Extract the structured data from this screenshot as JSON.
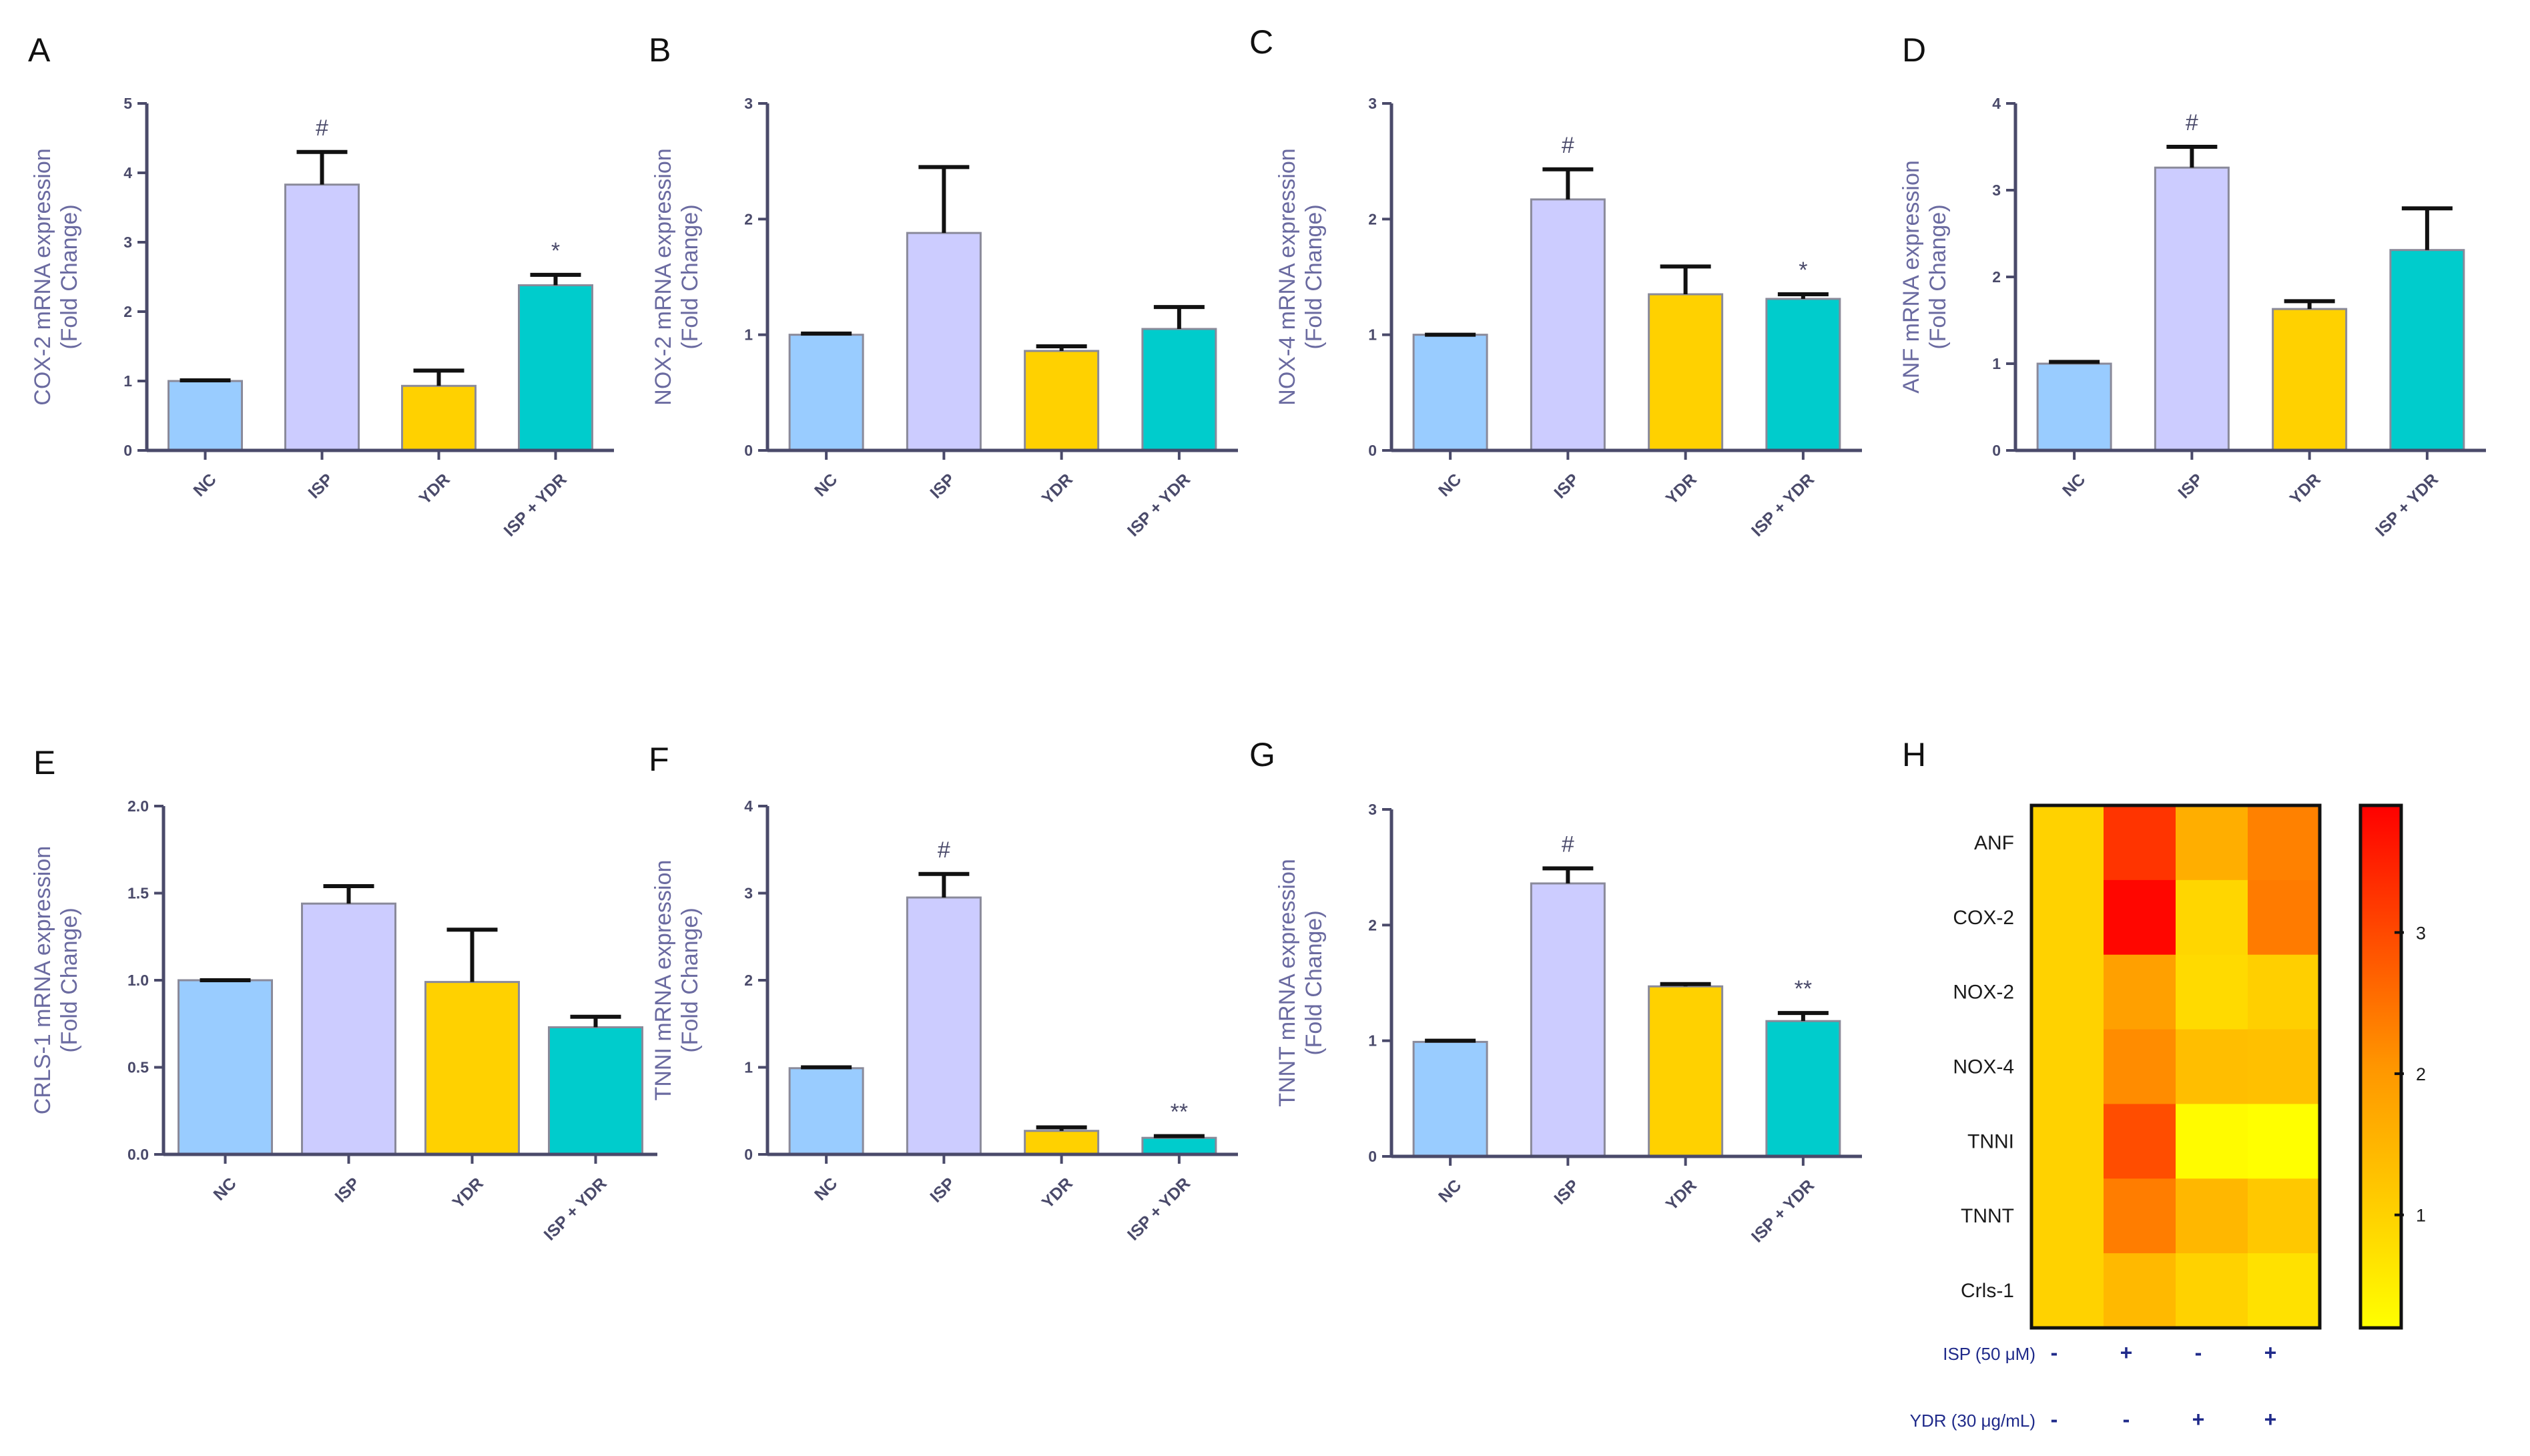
{
  "colors": {
    "NC": "#99ccff",
    "ISP": "#ccccff",
    "YDR": "#ffd100",
    "ISP + YDR": "#00cccc"
  },
  "chart_data": [
    {
      "panel": "A",
      "type": "bar",
      "ylabel_lines": [
        "COX-2 mRNA expression",
        "(Fold Change)"
      ],
      "categories": [
        "NC",
        "ISP",
        "YDR",
        "ISP + YDR"
      ],
      "values": [
        1.0,
        3.83,
        0.93,
        2.38
      ],
      "errors": [
        0.01,
        0.47,
        0.22,
        0.15
      ],
      "markers": [
        "",
        "#",
        "",
        "*"
      ],
      "ylim": [
        0,
        5
      ],
      "yticks": [
        0,
        1,
        2,
        3,
        4,
        5
      ],
      "tick_labels": [
        "0",
        "1",
        "2",
        "3",
        "4",
        "5"
      ]
    },
    {
      "panel": "B",
      "type": "bar",
      "ylabel_lines": [
        "NOX-2 mRNA expression",
        "(Fold Change)"
      ],
      "categories": [
        "NC",
        "ISP",
        "YDR",
        "ISP + YDR"
      ],
      "values": [
        1.0,
        1.88,
        0.86,
        1.05
      ],
      "errors": [
        0.01,
        0.57,
        0.04,
        0.19
      ],
      "markers": [
        "",
        "",
        "",
        ""
      ],
      "ylim": [
        0,
        3
      ],
      "yticks": [
        0,
        1,
        2,
        3
      ],
      "tick_labels": [
        "0",
        "1",
        "2",
        "3"
      ]
    },
    {
      "panel": "C",
      "type": "bar",
      "ylabel_lines": [
        "NOX-4 mRNA expression",
        "(Fold Change)"
      ],
      "categories": [
        "NC",
        "ISP",
        "YDR",
        "ISP + YDR"
      ],
      "values": [
        1.0,
        2.17,
        1.35,
        1.31
      ],
      "errors": [
        0.0,
        0.26,
        0.24,
        0.04
      ],
      "markers": [
        "",
        "#",
        "",
        "*"
      ],
      "ylim": [
        0,
        3
      ],
      "yticks": [
        0,
        1,
        2,
        3
      ],
      "tick_labels": [
        "0",
        "1",
        "2",
        "3"
      ]
    },
    {
      "panel": "D",
      "type": "bar",
      "ylabel_lines": [
        "ANF mRNA expression",
        "(Fold Change)"
      ],
      "categories": [
        "NC",
        "ISP",
        "YDR",
        "ISP + YDR"
      ],
      "values": [
        1.0,
        3.26,
        1.63,
        2.31
      ],
      "errors": [
        0.02,
        0.24,
        0.09,
        0.48
      ],
      "markers": [
        "",
        "#",
        "",
        ""
      ],
      "ylim": [
        0,
        4
      ],
      "yticks": [
        0,
        1,
        2,
        3,
        4
      ],
      "tick_labels": [
        "0",
        "1",
        "2",
        "3",
        "4"
      ]
    },
    {
      "panel": "E",
      "type": "bar",
      "ylabel_lines": [
        "CRLS-1 mRNA expression",
        "(Fold Change)"
      ],
      "categories": [
        "NC",
        "ISP",
        "YDR",
        "ISP + YDR"
      ],
      "values": [
        1.0,
        1.44,
        0.99,
        0.73
      ],
      "errors": [
        0.0,
        0.1,
        0.3,
        0.06
      ],
      "markers": [
        "",
        "",
        "",
        ""
      ],
      "ylim": [
        0,
        2
      ],
      "yticks": [
        0,
        0.5,
        1,
        1.5,
        2
      ],
      "tick_labels": [
        "0.0",
        "0.5",
        "1.0",
        "1.5",
        "2.0"
      ]
    },
    {
      "panel": "F",
      "type": "bar",
      "ylabel_lines": [
        "TNNI mRNA expression",
        "(Fold Change)"
      ],
      "categories": [
        "NC",
        "ISP",
        "YDR",
        "ISP + YDR"
      ],
      "values": [
        0.99,
        2.95,
        0.27,
        0.19
      ],
      "errors": [
        0.01,
        0.27,
        0.04,
        0.02
      ],
      "markers": [
        "",
        "#",
        "",
        "**"
      ],
      "ylim": [
        0,
        4
      ],
      "yticks": [
        0,
        1,
        2,
        3,
        4
      ],
      "tick_labels": [
        "0",
        "1",
        "2",
        "3",
        "4"
      ]
    },
    {
      "panel": "G",
      "type": "bar",
      "ylabel_lines": [
        "TNNT mRNA expression",
        "(Fold Change)"
      ],
      "categories": [
        "NC",
        "ISP",
        "YDR",
        "ISP + YDR"
      ],
      "values": [
        0.99,
        2.36,
        1.47,
        1.17
      ],
      "errors": [
        0.01,
        0.13,
        0.02,
        0.07
      ],
      "markers": [
        "",
        "#",
        "",
        "**"
      ],
      "ylim": [
        0,
        3
      ],
      "yticks": [
        0,
        1,
        2,
        3
      ],
      "tick_labels": [
        "0",
        "1",
        "2",
        "3"
      ]
    },
    {
      "panel": "H",
      "type": "heatmap",
      "rows": [
        "ANF",
        "COX-2",
        "NOX-2",
        "NOX-4",
        "TNNI",
        "TNNT",
        "Crls-1"
      ],
      "columns": [
        "NC",
        "ISP",
        "YDR",
        "ISP + YDR"
      ],
      "values": [
        [
          1.0,
          3.26,
          1.63,
          2.31
        ],
        [
          1.0,
          3.83,
          0.93,
          2.38
        ],
        [
          1.0,
          1.88,
          0.86,
          1.05
        ],
        [
          1.0,
          2.17,
          1.35,
          1.31
        ],
        [
          0.99,
          2.95,
          0.27,
          0.19
        ],
        [
          0.99,
          2.36,
          1.47,
          1.17
        ],
        [
          1.0,
          1.44,
          0.99,
          0.73
        ]
      ],
      "colorbar": {
        "min": 0.2,
        "max": 3.9,
        "ticks": [
          1,
          2,
          3
        ],
        "tick_labels": [
          "1",
          "2",
          "3"
        ]
      },
      "treatments": [
        {
          "label": "ISP (50 μM)",
          "signs": [
            "-",
            "+",
            "-",
            "+"
          ]
        },
        {
          "label": "YDR (30 μg/mL)",
          "signs": [
            "-",
            "-",
            "+",
            "+"
          ]
        }
      ]
    }
  ]
}
